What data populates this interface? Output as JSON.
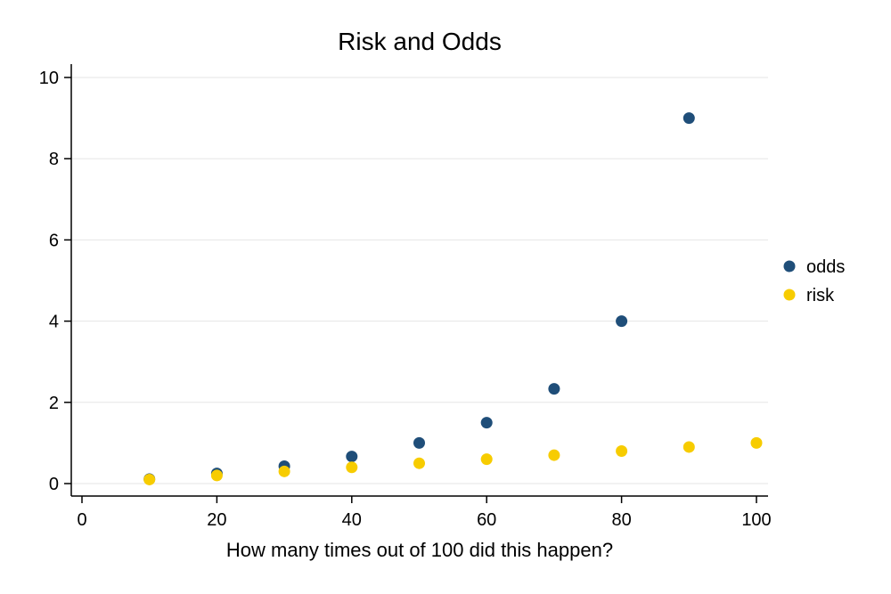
{
  "chart_data": {
    "type": "scatter",
    "title": "Risk and Odds",
    "xlabel": "How many times out of 100 did this happen?",
    "ylabel": "",
    "xlim": [
      0,
      100
    ],
    "ylim": [
      0,
      10
    ],
    "xticks": [
      0,
      20,
      40,
      60,
      80,
      100
    ],
    "yticks": [
      0,
      2,
      4,
      6,
      8,
      10
    ],
    "grid": "horizontal",
    "legend_position": "right",
    "series": [
      {
        "name": "odds",
        "color": "#1f4e79",
        "points": [
          {
            "x": 10,
            "y": 0.111
          },
          {
            "x": 20,
            "y": 0.25
          },
          {
            "x": 30,
            "y": 0.429
          },
          {
            "x": 40,
            "y": 0.667
          },
          {
            "x": 50,
            "y": 1.0
          },
          {
            "x": 60,
            "y": 1.5
          },
          {
            "x": 70,
            "y": 2.333
          },
          {
            "x": 80,
            "y": 4.0
          },
          {
            "x": 90,
            "y": 9.0
          }
        ]
      },
      {
        "name": "risk",
        "color": "#f7cc00",
        "points": [
          {
            "x": 10,
            "y": 0.1
          },
          {
            "x": 20,
            "y": 0.2
          },
          {
            "x": 30,
            "y": 0.3
          },
          {
            "x": 40,
            "y": 0.4
          },
          {
            "x": 50,
            "y": 0.5
          },
          {
            "x": 60,
            "y": 0.6
          },
          {
            "x": 70,
            "y": 0.7
          },
          {
            "x": 80,
            "y": 0.8
          },
          {
            "x": 90,
            "y": 0.9
          },
          {
            "x": 100,
            "y": 1.0
          }
        ]
      }
    ]
  }
}
